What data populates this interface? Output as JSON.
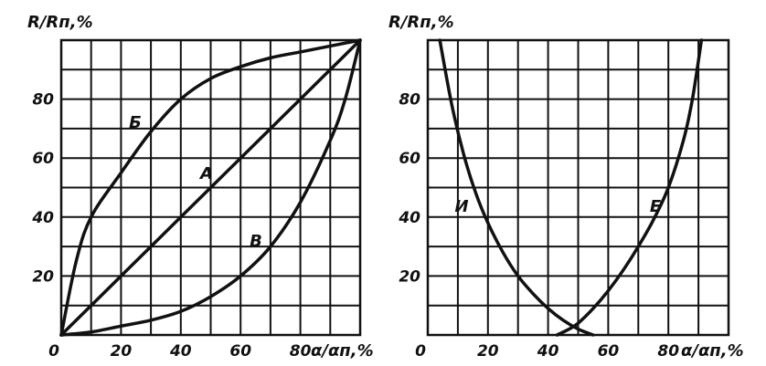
{
  "chart_data": [
    {
      "type": "line",
      "ylabel": "R/Rп,%",
      "xlabel": "α/αп,%",
      "xlim": [
        0,
        100
      ],
      "ylim": [
        0,
        100
      ],
      "grid": true,
      "x_ticks": [
        "0",
        "20",
        "40",
        "60",
        "80"
      ],
      "y_ticks": [
        "20",
        "40",
        "60",
        "80"
      ],
      "series": [
        {
          "name": "А",
          "x": [
            0,
            20,
            40,
            60,
            80,
            100
          ],
          "values": [
            0,
            20,
            40,
            60,
            80,
            100
          ]
        },
        {
          "name": "Б",
          "x": [
            0,
            5,
            10,
            20,
            30,
            40,
            50,
            60,
            70,
            80,
            90,
            100
          ],
          "values": [
            0,
            25,
            40,
            55,
            69,
            80,
            87,
            91,
            94,
            96,
            98,
            100
          ]
        },
        {
          "name": "В",
          "x": [
            0,
            10,
            20,
            30,
            40,
            50,
            60,
            70,
            80,
            90,
            95,
            100
          ],
          "values": [
            0,
            1,
            3,
            5,
            8,
            13,
            20,
            30,
            45,
            66,
            80,
            100
          ]
        }
      ]
    },
    {
      "type": "line",
      "ylabel": "R/Rп,%",
      "xlabel": "α/αп,%",
      "xlim": [
        0,
        100
      ],
      "ylim": [
        0,
        100
      ],
      "grid": true,
      "x_ticks": [
        "0",
        "20",
        "40",
        "60",
        "80"
      ],
      "y_ticks": [
        "20",
        "40",
        "60",
        "80"
      ],
      "series": [
        {
          "name": "И",
          "x": [
            4,
            8,
            12,
            16,
            20,
            25,
            30,
            35,
            40,
            45,
            50,
            55
          ],
          "values": [
            100,
            78,
            61,
            48,
            38,
            28,
            20,
            14,
            9,
            5,
            2,
            0
          ]
        },
        {
          "name": "Е",
          "x": [
            43,
            47,
            50,
            55,
            60,
            65,
            70,
            75,
            80,
            85,
            88,
            91
          ],
          "values": [
            0,
            2,
            4,
            9,
            15,
            22,
            30,
            39,
            50,
            66,
            80,
            100
          ]
        }
      ]
    }
  ]
}
